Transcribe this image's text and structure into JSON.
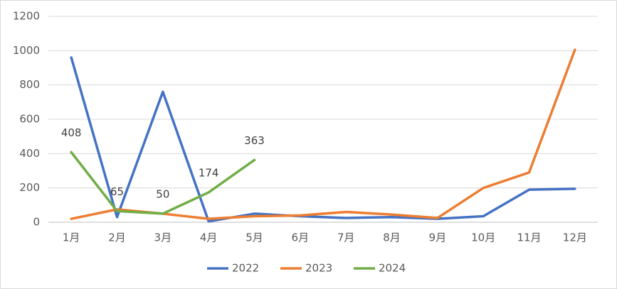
{
  "chart_data": {
    "type": "line",
    "categories": [
      "1月",
      "2月",
      "3月",
      "4月",
      "5月",
      "6月",
      "7月",
      "8月",
      "9月",
      "10月",
      "11月",
      "12月"
    ],
    "series": [
      {
        "name": "2022",
        "color": "#4472c4",
        "values": [
          960,
          30,
          760,
          5,
          50,
          35,
          25,
          30,
          20,
          35,
          190,
          195
        ]
      },
      {
        "name": "2023",
        "color": "#ed7d31",
        "values": [
          20,
          75,
          50,
          20,
          35,
          40,
          60,
          45,
          25,
          200,
          290,
          1005
        ]
      },
      {
        "name": "2024",
        "color": "#70ad47",
        "values": [
          408,
          65,
          50,
          174,
          363,
          null,
          null,
          null,
          null,
          null,
          null,
          null
        ],
        "data_labels": true
      }
    ],
    "ylim": [
      0,
      1200
    ],
    "yticks": [
      0,
      200,
      400,
      600,
      800,
      1000,
      1200
    ],
    "grid": true,
    "legend": "bottom"
  }
}
